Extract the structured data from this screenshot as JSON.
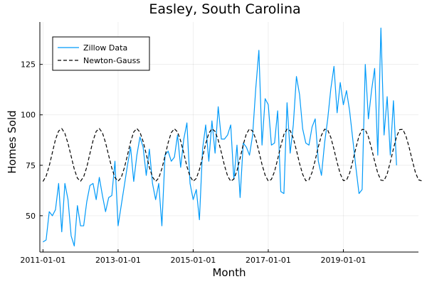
{
  "chart_data": {
    "type": "line",
    "title": "Easley, South Carolina",
    "xlabel": "Month",
    "ylabel": "Homes Sold",
    "x_start": "2011-01-01",
    "x_ticks": [
      "2011-01-01",
      "2013-01-01",
      "2015-01-01",
      "2017-01-01",
      "2019-01-01"
    ],
    "x_range": [
      "2010-12-01",
      "2021-01-01"
    ],
    "y_ticks": [
      50,
      75,
      100,
      125
    ],
    "y_range": [
      32,
      146
    ],
    "grid": true,
    "legend_position": "top-left",
    "series": [
      {
        "name": "Zillow Data",
        "style": "solid",
        "color": "#009af9",
        "values": [
          37,
          38,
          52,
          50,
          53,
          66,
          42,
          66,
          58,
          40,
          35,
          55,
          45,
          45,
          57,
          65,
          66,
          58,
          69,
          60,
          52,
          59,
          60,
          77,
          45,
          55,
          65,
          75,
          84,
          67,
          80,
          89,
          84,
          70,
          83,
          66,
          58,
          66,
          45,
          80,
          82,
          77,
          79,
          90,
          74,
          88,
          96,
          66,
          58,
          63,
          48,
          83,
          95,
          77,
          97,
          81,
          104,
          88,
          88,
          90,
          95,
          68,
          85,
          59,
          86,
          84,
          80,
          90,
          113,
          132,
          85,
          108,
          105,
          85,
          86,
          102,
          62,
          61,
          106,
          81,
          95,
          119,
          110,
          93,
          86,
          85,
          94,
          98,
          77,
          70,
          86,
          98,
          113,
          124,
          101,
          116,
          105,
          112,
          102,
          88,
          74,
          61,
          63,
          125,
          98,
          112,
          123,
          80,
          143,
          90,
          109,
          80,
          107,
          75
        ]
      },
      {
        "name": "Newton-Gauss",
        "style": "dashed",
        "color": "#000000",
        "values": [
          67.0,
          69.6,
          74.7,
          81.3,
          87.8,
          92.0,
          93.2,
          90.8,
          85.8,
          79.5,
          73.1,
          68.6,
          67.1,
          69.3,
          74.1,
          80.8,
          87.2,
          91.8,
          93.2,
          91.1,
          86.2,
          79.8,
          73.6,
          68.9,
          67.1,
          68.9,
          73.7,
          80.0,
          86.6,
          91.5,
          93.2,
          91.4,
          86.8,
          80.5,
          74.0,
          69.2,
          67.0,
          68.7,
          73.3,
          79.6,
          86.2,
          91.2,
          93.1,
          91.5,
          87.1,
          81.0,
          74.4,
          69.5,
          67.1,
          68.5,
          72.9,
          79.1,
          85.7,
          90.9,
          93.1,
          91.8,
          87.5,
          81.4,
          74.9,
          69.7,
          67.1,
          68.2,
          72.3,
          78.6,
          85.2,
          90.6,
          93.0,
          92.0,
          88.0,
          81.9,
          75.4,
          70.1,
          67.2,
          68.0,
          71.9,
          78.0,
          84.6,
          90.3,
          92.9,
          92.2,
          88.4,
          82.4,
          75.9,
          70.5,
          67.3,
          67.8,
          71.5,
          77.5,
          84.2,
          89.9,
          92.9,
          92.4,
          88.8,
          82.9,
          76.4,
          70.8,
          67.4,
          67.6,
          71.1,
          77.0,
          83.6,
          89.5,
          92.8,
          92.6,
          89.1,
          83.4,
          77.0,
          71.1,
          67.6,
          67.4,
          70.7,
          76.6,
          83.2,
          89.2,
          92.7,
          92.8,
          89.5,
          84.0,
          77.6,
          71.6,
          67.8,
          67.3
        ]
      }
    ]
  }
}
